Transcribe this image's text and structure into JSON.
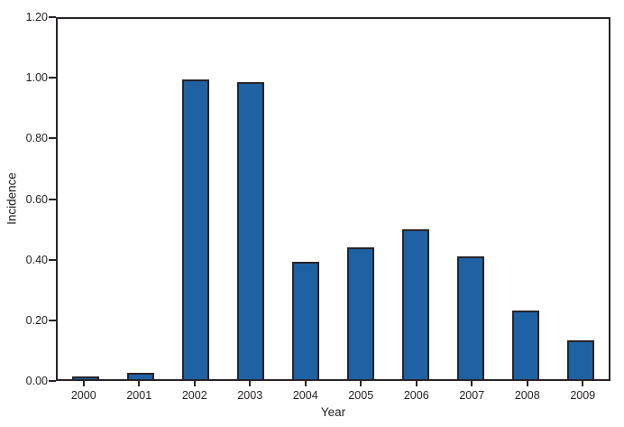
{
  "chart_data": {
    "type": "bar",
    "title": "",
    "xlabel": "Year",
    "ylabel": "Incidence",
    "categories": [
      "2000",
      "2001",
      "2002",
      "2003",
      "2004",
      "2005",
      "2006",
      "2007",
      "2008",
      "2009"
    ],
    "values": [
      0.01,
      0.02,
      1.0,
      0.99,
      0.39,
      0.44,
      0.5,
      0.41,
      0.23,
      0.13
    ],
    "ylim": [
      0,
      1.2
    ],
    "ytick_labels": [
      "0.00",
      "0.20",
      "0.40",
      "0.60",
      "0.80",
      "1.00",
      "1.20"
    ],
    "grid": "off",
    "legend": "none",
    "frame": "full-box",
    "colors": {
      "bar_fill": "#1e62a4",
      "bar_outline": "#272329",
      "axis": "#272329",
      "text": "#231f20",
      "background": "#ffffff"
    }
  }
}
